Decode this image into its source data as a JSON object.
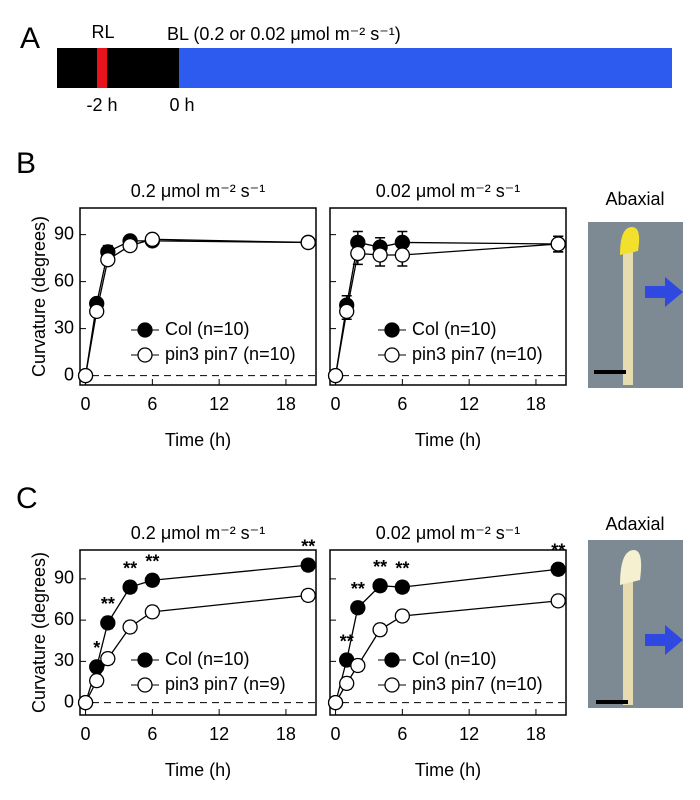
{
  "figure": {
    "panels": [
      "A",
      "B",
      "C"
    ],
    "timeline": {
      "rl": "RL",
      "bl": "BL (0.2 or 0.02 μmol m⁻² s⁻¹)",
      "t1": "-2 h",
      "t2": "0 h"
    },
    "photos": [
      "Abaxial",
      "Adaxial"
    ]
  },
  "chart_data": [
    {
      "type": "line",
      "title": "0.2 μmol m⁻² s⁻¹",
      "xlabel": "Time  (h)",
      "ylabel": "Curvature (degrees)",
      "x": [
        0,
        1,
        2,
        4,
        6,
        20
      ],
      "xlim": [
        -0.5,
        20.7
      ],
      "ylim": [
        -6,
        107
      ],
      "xticks": [
        0,
        6,
        12,
        18
      ],
      "yticks": [
        0,
        30,
        60,
        90
      ],
      "zero_line": true,
      "show_ytick_labels": true,
      "series": [
        {
          "name": "Col (n=10)",
          "color": "#000000",
          "values": [
            0,
            46,
            79,
            86,
            86,
            85
          ],
          "errors": [
            0,
            3,
            4,
            3,
            3,
            3
          ]
        },
        {
          "name": "pin3 pin7 (n=10)",
          "color": "#ffffff",
          "values": [
            0,
            41,
            74,
            83,
            87,
            85
          ],
          "errors": [
            0,
            3,
            3,
            3,
            3,
            3
          ]
        }
      ]
    },
    {
      "type": "line",
      "title": "0.02 μmol m⁻² s⁻¹",
      "xlabel": "Time  (h)",
      "x": [
        0,
        1,
        2,
        4,
        6,
        20
      ],
      "xlim": [
        -0.5,
        20.7
      ],
      "ylim": [
        -6,
        107
      ],
      "xticks": [
        0,
        6,
        12,
        18
      ],
      "yticks": [
        0,
        30,
        60,
        90
      ],
      "zero_line": true,
      "show_ytick_labels": false,
      "series": [
        {
          "name": "Col (n=10)",
          "color": "#000000",
          "values": [
            0,
            45,
            85,
            82,
            85,
            84
          ],
          "errors": [
            0,
            6,
            7,
            6,
            7,
            5
          ]
        },
        {
          "name": "pin3 pin7 (n=10)",
          "color": "#ffffff",
          "values": [
            0,
            41,
            78,
            77,
            77,
            84
          ],
          "errors": [
            0,
            5,
            7,
            7,
            7,
            5
          ]
        }
      ]
    },
    {
      "type": "line",
      "title": "0.2 μmol m⁻² s⁻¹",
      "xlabel": "Time  (h)",
      "ylabel": "Curvature (degrees)",
      "x": [
        0,
        1,
        2,
        4,
        6,
        20
      ],
      "xlim": [
        -0.5,
        20.7
      ],
      "ylim": [
        -9,
        111
      ],
      "xticks": [
        0,
        6,
        12,
        18
      ],
      "yticks": [
        0,
        30,
        60,
        90
      ],
      "zero_line": true,
      "show_ytick_labels": true,
      "series": [
        {
          "name": "Col (n=10)",
          "color": "#000000",
          "values": [
            0,
            26,
            58,
            84,
            89,
            100
          ],
          "errors": [
            0,
            4,
            4,
            4,
            4,
            4
          ]
        },
        {
          "name": "pin3 pin7 (n=9)",
          "color": "#ffffff",
          "values": [
            0,
            16,
            32,
            55,
            66,
            78
          ],
          "errors": [
            0,
            4,
            4,
            4,
            4,
            4
          ]
        }
      ],
      "annotations": [
        {
          "x": 1,
          "text": "*"
        },
        {
          "x": 2,
          "text": "**"
        },
        {
          "x": 4,
          "text": "**"
        },
        {
          "x": 6,
          "text": "**"
        },
        {
          "x": 20,
          "text": "**"
        }
      ]
    },
    {
      "type": "line",
      "title": "0.02 μmol m⁻² s⁻¹",
      "xlabel": "Time  (h)",
      "x": [
        0,
        1,
        2,
        4,
        6,
        20
      ],
      "xlim": [
        -0.5,
        20.7
      ],
      "ylim": [
        -9,
        111
      ],
      "xticks": [
        0,
        6,
        12,
        18
      ],
      "yticks": [
        0,
        30,
        60,
        90
      ],
      "zero_line": true,
      "show_ytick_labels": false,
      "series": [
        {
          "name": "Col (n=10)",
          "color": "#000000",
          "values": [
            0,
            31,
            69,
            85,
            84,
            97
          ],
          "errors": [
            0,
            4,
            4,
            4,
            4,
            4
          ]
        },
        {
          "name": "pin3 pin7 (n=10)",
          "color": "#ffffff",
          "values": [
            0,
            14,
            27,
            53,
            63,
            74
          ],
          "errors": [
            0,
            4,
            4,
            4,
            4,
            4
          ]
        }
      ],
      "annotations": [
        {
          "x": 1,
          "text": "**"
        },
        {
          "x": 2,
          "text": "**"
        },
        {
          "x": 4,
          "text": "**"
        },
        {
          "x": 6,
          "text": "**"
        },
        {
          "x": 20,
          "text": "**"
        }
      ]
    }
  ]
}
